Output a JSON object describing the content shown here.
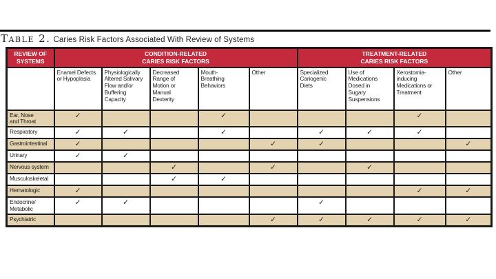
{
  "title": {
    "label": "Table 2.",
    "text": "Caries Risk Factors Associated With Review of Systems"
  },
  "table": {
    "corner_header": "REVIEW OF\nSYSTEMS",
    "groups": [
      {
        "label": "CONDITION-RELATED\nCARIES RISK FACTORS",
        "span": 5
      },
      {
        "label": "TREATMENT-RELATED\nCARIES RISK FACTORS",
        "span": 4
      }
    ],
    "columns": [
      "Enamel Defects\nor Hypoplasia",
      "Physiologically\nAltered Salivary\nFlow and/or\nBuffering\nCapacity",
      "Decreased\nRange of\nMotion or\nManual\nDexterity",
      "Mouth-\nBreathing\nBehaviors",
      "Other",
      "Specialized\nCariogenic\nDiets",
      "Use of\nMedications\nDosed in\nSugary\nSuspensions",
      "Xerostomia-\ninducing\nMedications or\nTreatment",
      "Other"
    ],
    "check_glyph": "✓",
    "rows": [
      {
        "label": "Ear, Nose\nand Throat",
        "cells": [
          "✓",
          "",
          "",
          "✓",
          "",
          "",
          "",
          "✓",
          ""
        ]
      },
      {
        "label": "Respiratory",
        "cells": [
          "✓",
          "✓",
          "",
          "✓",
          "",
          "✓",
          "✓",
          "✓",
          ""
        ]
      },
      {
        "label": "Gastrointestinal",
        "cells": [
          "✓",
          "",
          "",
          "",
          "✓",
          "✓",
          "",
          "",
          "✓"
        ]
      },
      {
        "label": "Urinary",
        "cells": [
          "✓",
          "✓",
          "",
          "",
          "",
          "",
          "",
          "",
          ""
        ]
      },
      {
        "label": "Nervous system",
        "cells": [
          "",
          "",
          "✓",
          "",
          "✓",
          "",
          "✓",
          "",
          ""
        ]
      },
      {
        "label": "Musculoskeletal",
        "cells": [
          "",
          "",
          "✓",
          "✓",
          "",
          "",
          "",
          "",
          ""
        ]
      },
      {
        "label": "Hematologic",
        "cells": [
          "✓",
          "",
          "",
          "",
          "",
          "",
          "",
          "✓",
          "✓"
        ]
      },
      {
        "label": "Endocrine/\nMetabolic",
        "cells": [
          "✓",
          "✓",
          "",
          "",
          "",
          "✓",
          "",
          "",
          ""
        ]
      },
      {
        "label": "Psychiatric",
        "cells": [
          "",
          "",
          "",
          "",
          "✓",
          "✓",
          "✓",
          "✓",
          "✓"
        ]
      }
    ],
    "colors": {
      "header_red": "#C42A3C",
      "row_tan": "#E4D3B0",
      "row_white": "#FFFFFF",
      "border": "#1A1A1A"
    }
  }
}
